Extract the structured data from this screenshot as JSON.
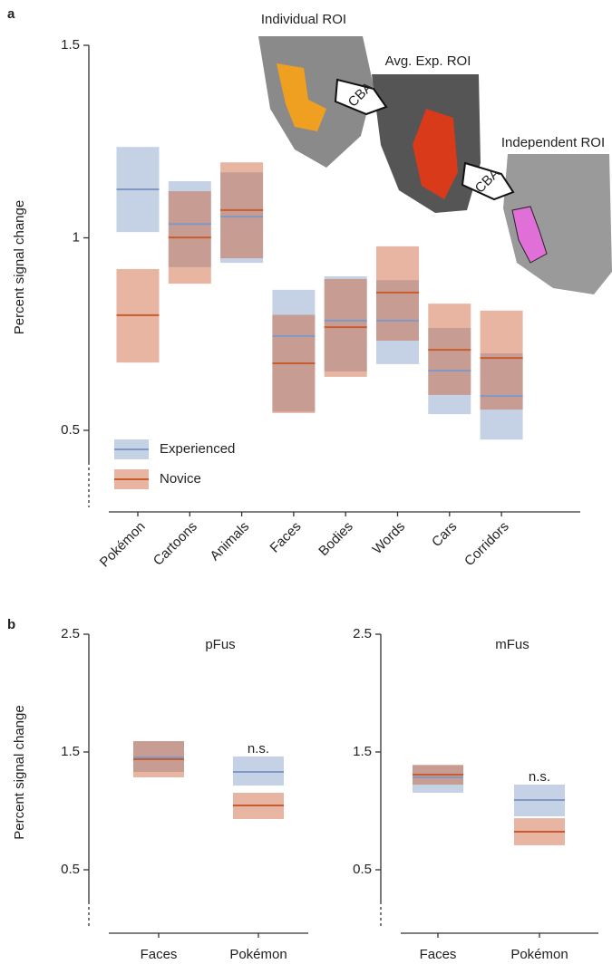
{
  "chart_data": [
    {
      "type": "crossbar",
      "panel_label": "a",
      "ylabel": "Percent signal change",
      "categories": [
        "Pokémon",
        "Cartoons",
        "Animals",
        "Faces",
        "Bodies",
        "Words",
        "Cars",
        "Corridors"
      ],
      "ylim": [
        0.3,
        1.5
      ],
      "yticks": [
        0.5,
        1,
        1.5
      ],
      "legend": "lower left",
      "annotations": [
        "Individual ROI",
        "Avg. Exp. ROI",
        "Independent ROI",
        "CBA",
        "CBA"
      ],
      "series": [
        {
          "name": "Experienced",
          "color": "#7f98c4",
          "values": [
            1.126,
            1.036,
            1.055,
            0.745,
            0.785,
            0.785,
            0.655,
            0.589
          ],
          "low": [
            1.015,
            0.924,
            0.935,
            0.549,
            0.653,
            0.672,
            0.542,
            0.476
          ],
          "high": [
            1.236,
            1.147,
            1.17,
            0.865,
            0.9,
            0.89,
            0.766,
            0.7
          ]
        },
        {
          "name": "Novice",
          "color": "#c95b30",
          "values": [
            0.799,
            1.001,
            1.072,
            0.674,
            0.768,
            0.858,
            0.709,
            0.688
          ],
          "low": [
            0.676,
            0.881,
            0.947,
            0.545,
            0.639,
            0.733,
            0.592,
            0.554
          ],
          "high": [
            0.919,
            1.121,
            1.196,
            0.8,
            0.893,
            0.978,
            0.829,
            0.811
          ]
        }
      ]
    },
    {
      "type": "crossbar",
      "panel_label": "b",
      "title": "pFus",
      "ylabel": "Percent signal change",
      "categories": [
        "Faces",
        "Pokémon"
      ],
      "ylim": [
        0,
        2.5
      ],
      "yticks": [
        0.5,
        1.5,
        2.5
      ],
      "annotations": [
        "n.s."
      ],
      "series": [
        {
          "color": "#7f98c4",
          "values": [
            1.454,
            1.331
          ],
          "low": [
            1.331,
            1.215
          ],
          "high": [
            1.592,
            1.462
          ]
        },
        {
          "color": "#c95b30",
          "values": [
            1.438,
            1.046
          ],
          "low": [
            1.285,
            0.931
          ],
          "high": [
            1.592,
            1.154
          ]
        }
      ]
    },
    {
      "type": "crossbar",
      "title": "mFus",
      "categories": [
        "Faces",
        "Pokémon"
      ],
      "ylim": [
        0,
        2.5
      ],
      "yticks": [
        0.5,
        1.5,
        2.5
      ],
      "annotations": [
        "n.s."
      ],
      "series": [
        {
          "color": "#7f98c4",
          "values": [
            1.285,
            1.092
          ],
          "low": [
            1.154,
            0.954
          ],
          "high": [
            1.385,
            1.223
          ]
        },
        {
          "color": "#c95b30",
          "values": [
            1.308,
            0.823
          ],
          "low": [
            1.223,
            0.708
          ],
          "high": [
            1.392,
            0.938
          ]
        }
      ]
    }
  ]
}
